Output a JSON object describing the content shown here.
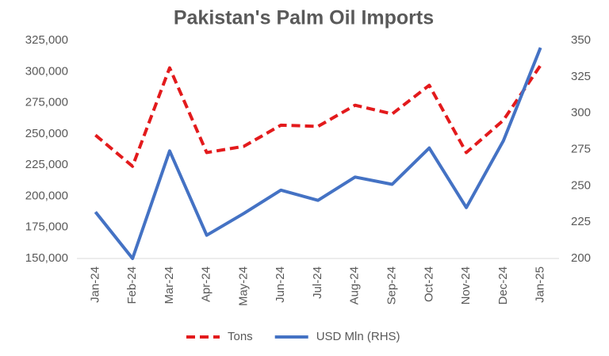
{
  "chart_data": {
    "type": "line",
    "title": "Pakistan's Palm Oil Imports",
    "categories": [
      "Jan-24",
      "Feb-24",
      "Mar-24",
      "Apr-24",
      "May-24",
      "Jun-24",
      "Jul-24",
      "Aug-24",
      "Sep-24",
      "Oct-24",
      "Nov-24",
      "Dec-24",
      "Jan-25"
    ],
    "series": [
      {
        "name": "Tons",
        "color": "#e31a1c",
        "dashed": true,
        "values": [
          249000,
          224000,
          303000,
          235000,
          240000,
          257000,
          256000,
          273000,
          266000,
          289000,
          235000,
          261000,
          305000
        ]
      },
      {
        "name": "USD Mln (RHS)",
        "color": "#4472c4",
        "axis": "y2",
        "values": [
          232,
          200,
          274,
          216,
          231,
          247,
          240,
          256,
          251,
          276,
          235,
          281,
          345
        ]
      }
    ],
    "ylim": [
      150000,
      325000
    ],
    "yticks": [
      {
        "value": 150000,
        "label": "150,000"
      },
      {
        "value": 175000,
        "label": "175,000"
      },
      {
        "value": 200000,
        "label": "200,000"
      },
      {
        "value": 225000,
        "label": "225,000"
      },
      {
        "value": 250000,
        "label": "250,000"
      },
      {
        "value": 275000,
        "label": "275,000"
      },
      {
        "value": 300000,
        "label": "300,000"
      },
      {
        "value": 325000,
        "label": "325,000"
      }
    ],
    "y2lim": [
      200,
      350
    ],
    "y2ticks": [
      200,
      225,
      250,
      275,
      300,
      325,
      350
    ],
    "legend": "bottom"
  }
}
